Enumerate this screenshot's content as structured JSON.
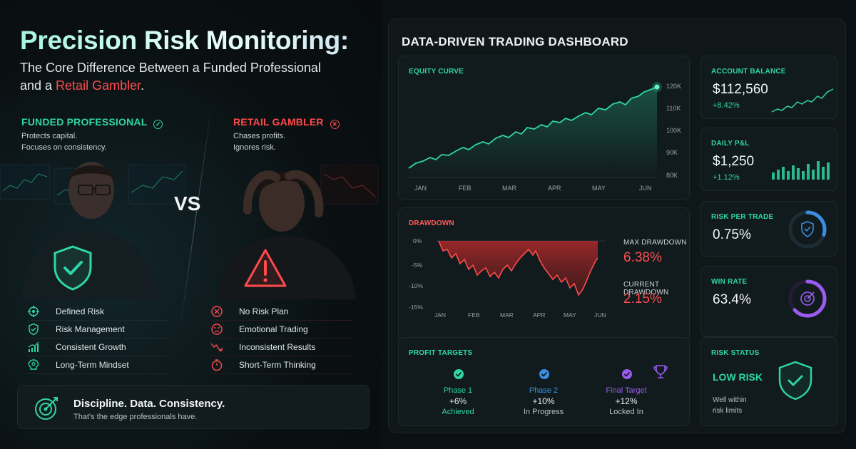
{
  "hero": {
    "headline": "Precision Risk Monitoring:",
    "subline_1": "The Core Difference Between a Funded Professional",
    "subline_2a": "and a ",
    "subline_2b": "Retail Gambler",
    "subline_2c": "."
  },
  "professional": {
    "title": "FUNDED PROFESSIONAL",
    "mark": "✓",
    "desc_1": "Protects capital.",
    "desc_2": "Focuses on consistency.",
    "features": [
      {
        "label": "Defined Risk",
        "icon": "crosshair-icon"
      },
      {
        "label": "Risk Management",
        "icon": "shield-check-icon"
      },
      {
        "label": "Consistent Growth",
        "icon": "growth-chart-icon"
      },
      {
        "label": "Long-Term Mindset",
        "icon": "brain-icon"
      }
    ]
  },
  "gambler": {
    "title": "RETAIL GAMBLER",
    "mark": "✕",
    "desc_1": "Chases profits.",
    "desc_2": "Ignores risk.",
    "features": [
      {
        "label": "No Risk Plan",
        "icon": "x-circle-icon"
      },
      {
        "label": "Emotional Trading",
        "icon": "angry-face-icon"
      },
      {
        "label": "Inconsistent Results",
        "icon": "downtrend-icon"
      },
      {
        "label": "Short-Term Thinking",
        "icon": "stopwatch-icon"
      }
    ]
  },
  "vs": "VS",
  "discipline": {
    "title": "Discipline. Data. Consistency.",
    "sub": "That's the edge professionals have."
  },
  "dashboard": {
    "title": "DATA-DRIVEN TRADING DASHBOARD",
    "equity": {
      "label": "EQUITY CURVE",
      "months": [
        "JAN",
        "FEB",
        "MAR",
        "APR",
        "MAY",
        "JUN"
      ],
      "yticks": [
        "120K",
        "110K",
        "100K",
        "90K",
        "80K"
      ]
    },
    "drawdown": {
      "label": "DRAWDOWN",
      "months": [
        "JAN",
        "FEB",
        "MAR",
        "APR",
        "MAY",
        "JUN"
      ],
      "yticks": [
        "0%",
        "-5%",
        "-10%",
        "-15%"
      ],
      "max_label": "MAX DRAWDOWN",
      "max_value": "6.38%",
      "current_label": "CURRENT DRAWDOWN",
      "current_value": "2.15%"
    },
    "balance": {
      "label": "ACCOUNT BALANCE",
      "value": "$112,560",
      "change": "+8.42%"
    },
    "pnl": {
      "label": "DAILY P&L",
      "value": "$1,250",
      "change": "+1.12%"
    },
    "risk_per_trade": {
      "label": "RISK PER TRADE",
      "value": "0.75%",
      "gauge_fraction": 0.3
    },
    "win_rate": {
      "label": "WIN RATE",
      "value": "63.4%",
      "gauge_fraction": 0.634
    },
    "targets": {
      "label": "PROFIT TARGETS",
      "phases": [
        {
          "name": "Phase 1",
          "pct": "+6%",
          "status": "Achieved",
          "color": "#2fd6a6"
        },
        {
          "name": "Phase 2",
          "pct": "+10%",
          "status": "In Progress",
          "color": "#3b8dde"
        },
        {
          "name": "Final Target",
          "pct": "+12%",
          "status": "Locked In",
          "color": "#9a5cf0"
        }
      ]
    },
    "risk_status": {
      "label": "RISK STATUS",
      "value": "LOW RISK",
      "desc_1": "Well within",
      "desc_2": "risk limits"
    }
  },
  "colors": {
    "accent": "#2fd6a6",
    "danger": "#ff4a4a",
    "blue": "#3b8dde",
    "purple": "#9a5cf0",
    "bg": "#0b1113"
  }
}
